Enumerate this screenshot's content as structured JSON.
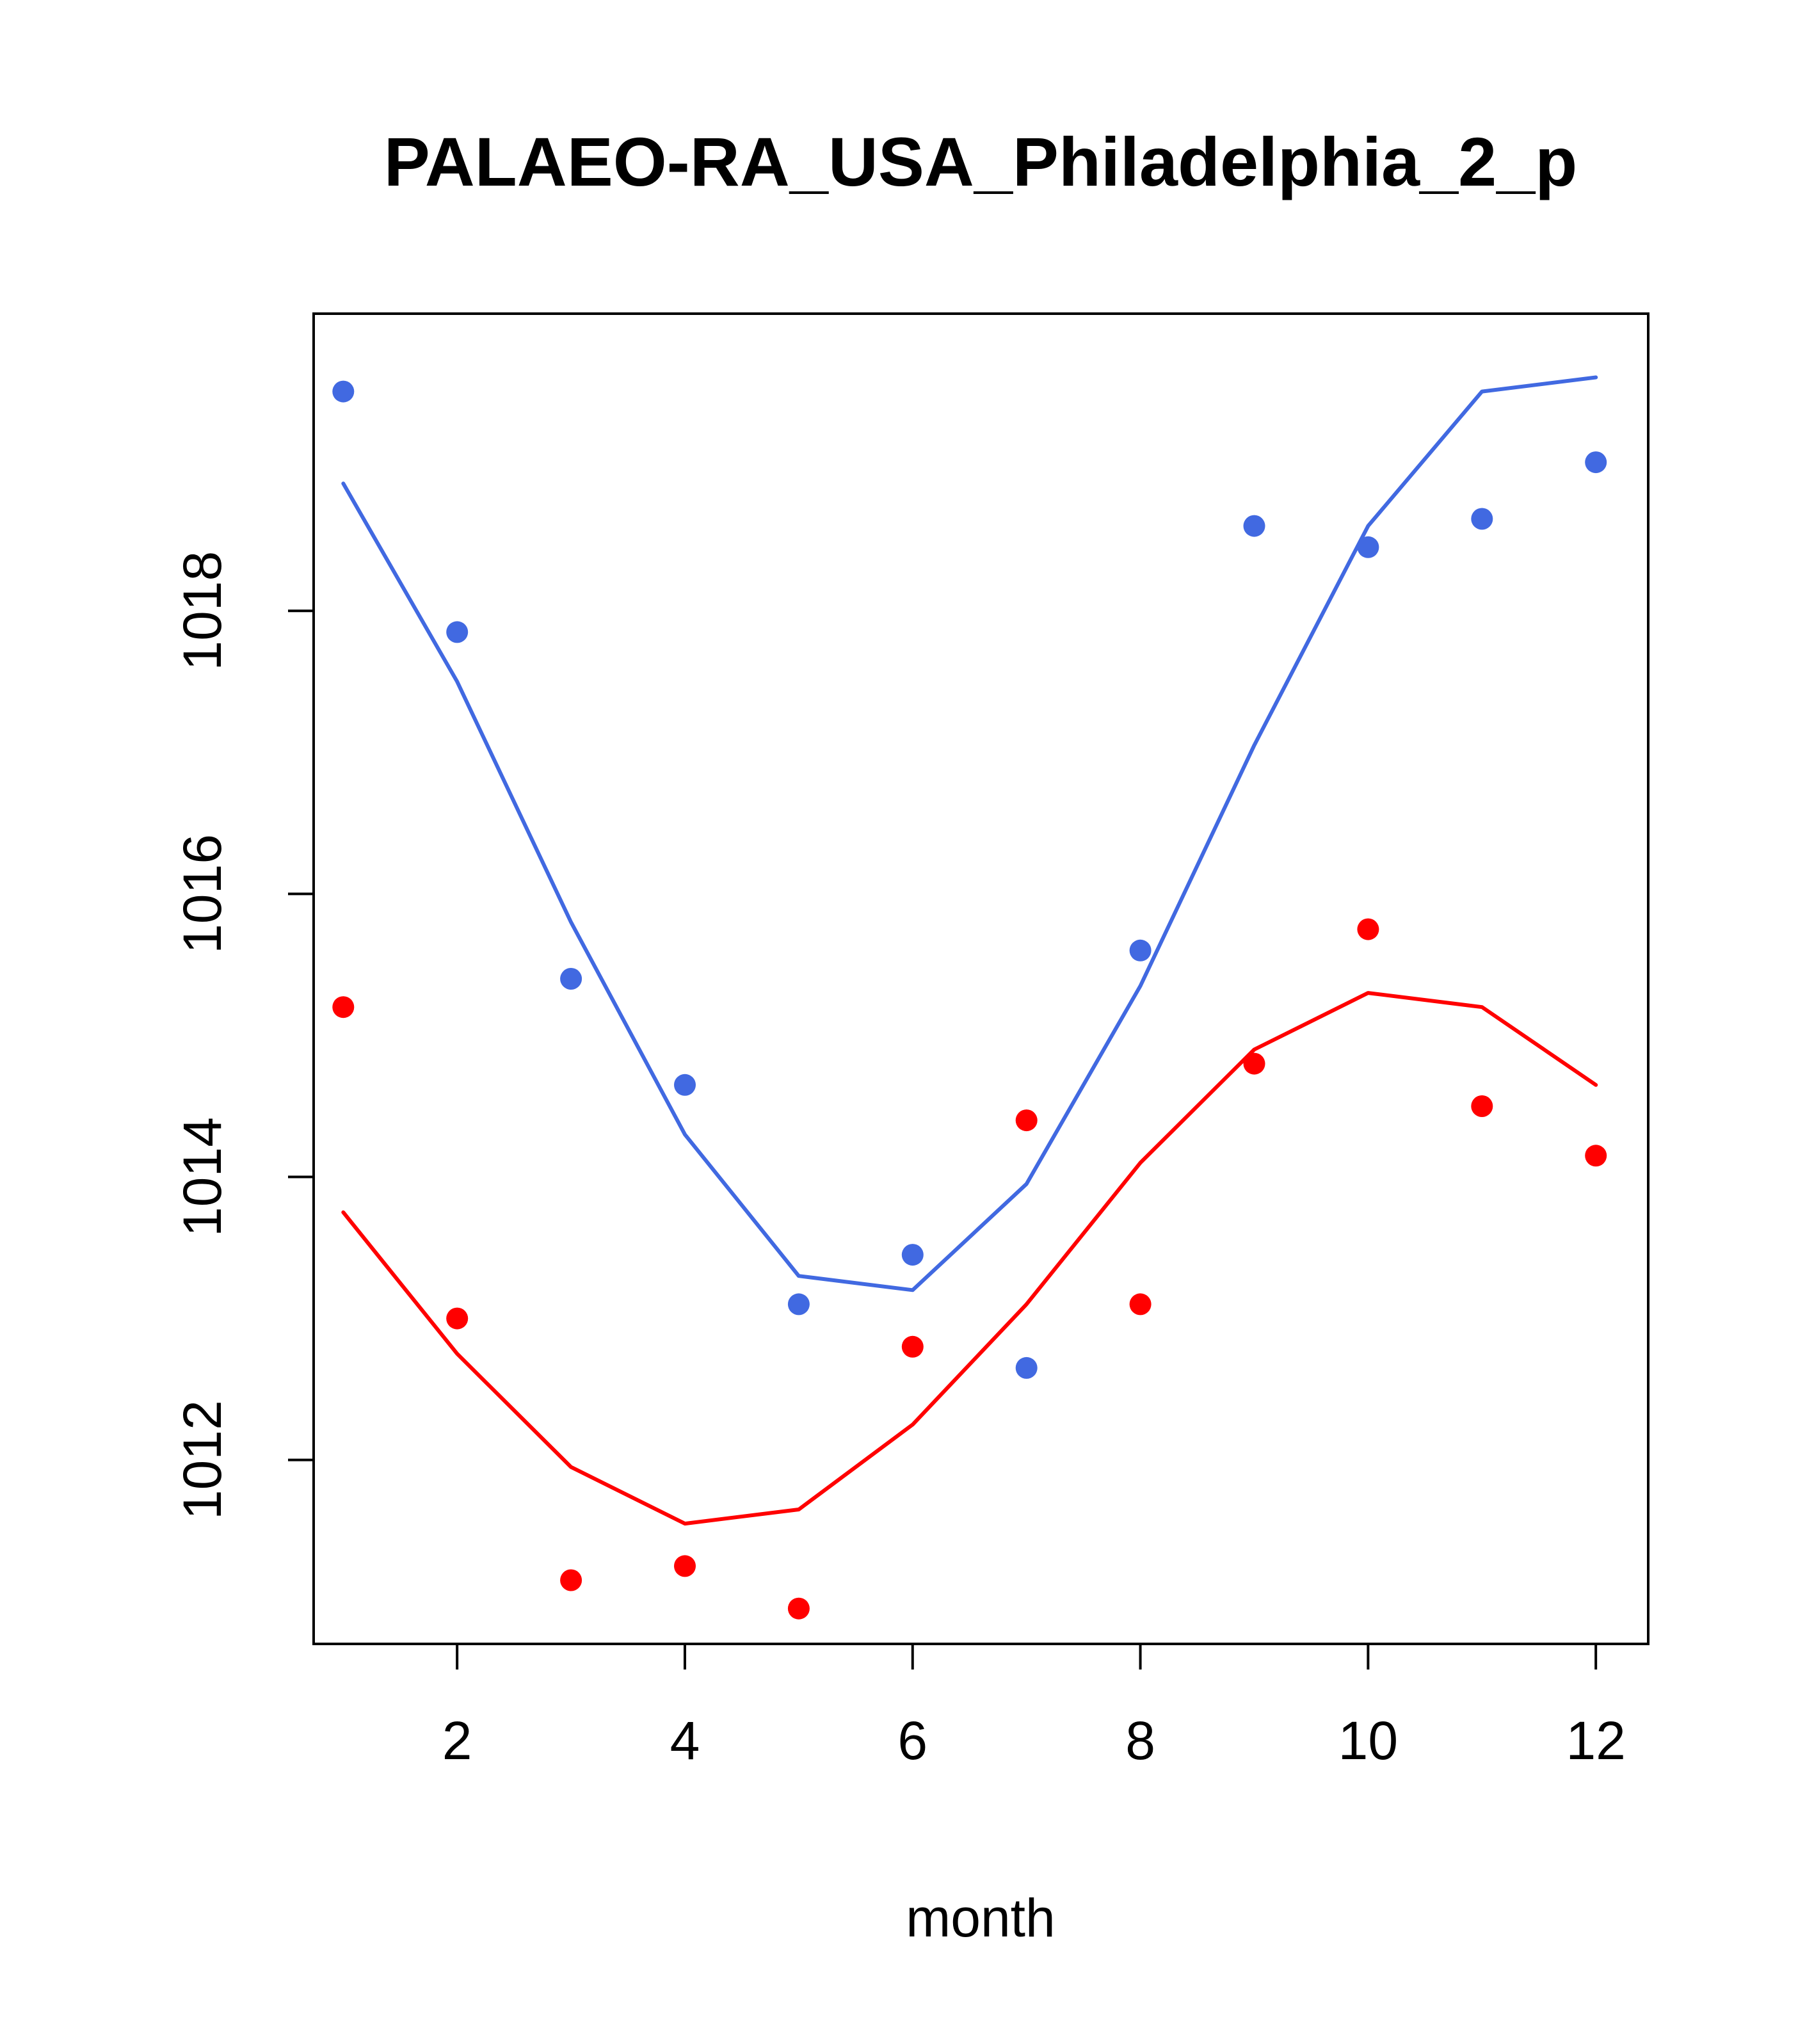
{
  "chart_data": {
    "type": "line",
    "title": "PALAEO-RA_USA_Philadelphia_2_p",
    "xlabel": "month",
    "ylabel": "",
    "xlim": [
      0.74,
      12.46
    ],
    "ylim": [
      1010.7,
      1020.1
    ],
    "x_ticks": [
      2,
      4,
      6,
      8,
      10,
      12
    ],
    "y_ticks": [
      1012,
      1014,
      1016,
      1018
    ],
    "grid": false,
    "series": [
      {
        "name": "blue",
        "color": "#4169E1",
        "line": {
          "x": [
            1,
            2,
            3,
            4,
            5,
            6,
            7,
            8,
            9,
            10,
            11,
            12
          ],
          "y": [
            1018.9,
            1017.5,
            1015.8,
            1014.3,
            1013.3,
            1013.2,
            1013.95,
            1015.35,
            1017.05,
            1018.6,
            1019.55,
            1019.65
          ]
        },
        "points": {
          "x": [
            1,
            2,
            3,
            4,
            5,
            6,
            7,
            8,
            9,
            10,
            11,
            12
          ],
          "y": [
            1019.55,
            1017.85,
            1015.4,
            1014.65,
            1013.1,
            1013.45,
            1012.65,
            1015.6,
            1018.6,
            1018.45,
            1018.65,
            1019.05
          ]
        }
      },
      {
        "name": "red",
        "color": "#FF0000",
        "line": {
          "x": [
            1,
            2,
            3,
            4,
            5,
            6,
            7,
            8,
            9,
            10,
            11,
            12
          ],
          "y": [
            1013.75,
            1012.75,
            1011.95,
            1011.55,
            1011.65,
            1012.25,
            1013.1,
            1014.1,
            1014.9,
            1015.3,
            1015.2,
            1014.65
          ]
        },
        "points": {
          "x": [
            1,
            2,
            3,
            4,
            5,
            6,
            7,
            8,
            9,
            10,
            11,
            12
          ],
          "y": [
            1015.2,
            1013.0,
            1011.15,
            1011.25,
            1010.95,
            1012.8,
            1014.4,
            1013.1,
            1014.8,
            1015.75,
            1014.5,
            1014.15
          ]
        }
      }
    ]
  }
}
